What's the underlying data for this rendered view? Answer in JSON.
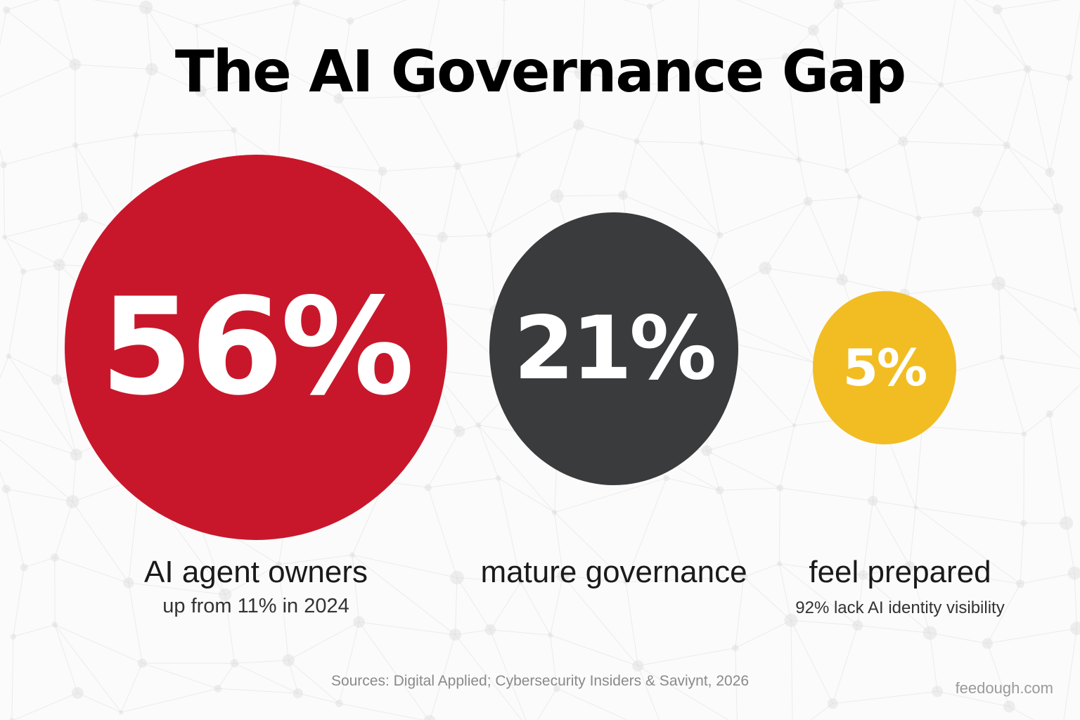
{
  "title": "The AI Governance Gap",
  "colors": {
    "red": "#c8172b",
    "charcoal": "#3a3b3d",
    "gold": "#f2bd23",
    "background": "#fbfbfb",
    "network": "#d9d9d9"
  },
  "chart_data": {
    "type": "bubble",
    "title": "The AI Governance Gap",
    "xlabel": "",
    "ylabel": "",
    "grid": false,
    "legend": "none",
    "series": [
      {
        "value": 56,
        "value_label": "56%",
        "label": "AI agent owners",
        "sublabel": "up from 11% in 2024",
        "color": "#c8172b"
      },
      {
        "value": 21,
        "value_label": "21%",
        "label": "mature governance",
        "sublabel": "",
        "color": "#3a3b3d"
      },
      {
        "value": 5,
        "value_label": "5%",
        "label": "feel prepared",
        "sublabel": "92% lack AI identity visibility",
        "color": "#f2bd23"
      }
    ]
  },
  "footer": {
    "sources": "Sources: Digital Applied; Cybersecurity Insiders & Saviynt, 2026",
    "credit": "feedough.com"
  }
}
